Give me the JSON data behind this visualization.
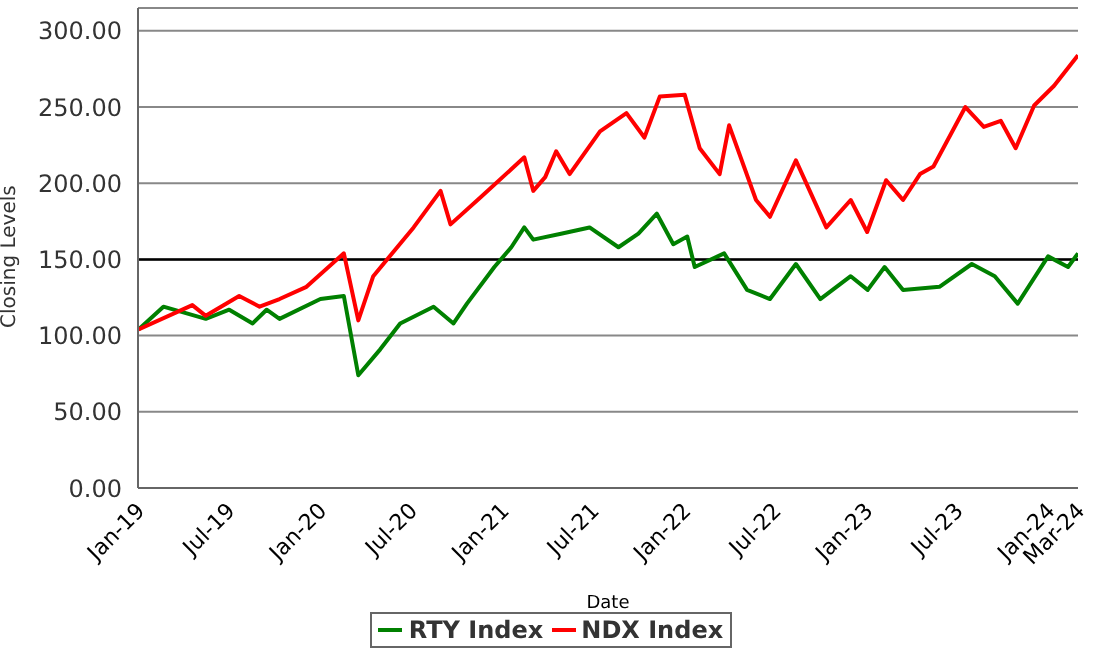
{
  "chart_data": {
    "type": "line",
    "xlabel": "Date",
    "ylabel": "Closing Levels",
    "xlim": [
      "2019-01-01",
      "2024-03-01"
    ],
    "xticks": [
      {
        "value": "2019-01-01",
        "label": "Jan-19"
      },
      {
        "value": "2019-07-01",
        "label": "Jul-19"
      },
      {
        "value": "2020-01-01",
        "label": "Jan-20"
      },
      {
        "value": "2020-07-01",
        "label": "Jul-20"
      },
      {
        "value": "2021-01-01",
        "label": "Jan-21"
      },
      {
        "value": "2021-07-01",
        "label": "Jul-21"
      },
      {
        "value": "2022-01-01",
        "label": "Jan-22"
      },
      {
        "value": "2022-07-01",
        "label": "Jul-22"
      },
      {
        "value": "2023-01-01",
        "label": "Jan-23"
      },
      {
        "value": "2023-07-01",
        "label": "Jul-23"
      },
      {
        "value": "2024-01-01",
        "label": "Jan-24"
      },
      {
        "value": "2024-03-01",
        "label": "Mar-24"
      }
    ],
    "ylim": [
      0,
      315
    ],
    "yticks": [
      {
        "value": 0,
        "label": "0.00"
      },
      {
        "value": 50,
        "label": "50.00"
      },
      {
        "value": 100,
        "label": "100.00"
      },
      {
        "value": 150,
        "label": "150.00"
      },
      {
        "value": 200,
        "label": "200.00"
      },
      {
        "value": 250,
        "label": "250.00"
      },
      {
        "value": 300,
        "label": "300.00"
      }
    ],
    "grid": "y",
    "legend": "bottom",
    "marker": "none",
    "line_style": "solid",
    "ref_lines": [
      {
        "axis": "y",
        "value": 150,
        "color": "#000000"
      }
    ],
    "series": [
      {
        "name": "RTY Index",
        "color": "#008000",
        "x": [
          "2019-01-02",
          "2019-02-21",
          "2019-05-17",
          "2019-07-03",
          "2019-08-19",
          "2019-09-16",
          "2019-10-12",
          "2020-01-02",
          "2020-02-18",
          "2020-03-18",
          "2020-05-01",
          "2020-06-10",
          "2020-08-16",
          "2020-09-25",
          "2020-10-22",
          "2020-12-16",
          "2021-01-19",
          "2021-02-14",
          "2021-03-04",
          "2021-05-01",
          "2021-06-25",
          "2021-08-22",
          "2021-10-01",
          "2021-11-07",
          "2021-12-10",
          "2022-01-07",
          "2022-01-22",
          "2022-03-22",
          "2022-05-07",
          "2022-06-22",
          "2022-08-13",
          "2022-10-01",
          "2022-12-01",
          "2023-01-04",
          "2023-02-07",
          "2023-03-16",
          "2023-05-28",
          "2023-08-01",
          "2023-09-16",
          "2023-11-01",
          "2024-01-01",
          "2024-02-10",
          "2024-03-01"
        ],
        "values": [
          104,
          119,
          111,
          117,
          108,
          117,
          111,
          124,
          126,
          74,
          91,
          108,
          119,
          108,
          121,
          145,
          158,
          171,
          163,
          167,
          171,
          158,
          167,
          180,
          160,
          165,
          145,
          154,
          130,
          124,
          147,
          124,
          139,
          130,
          145,
          130,
          132,
          147,
          139,
          121,
          152,
          145,
          154
        ]
      },
      {
        "name": "NDX Index",
        "color": "#ff0000",
        "x": [
          "2019-01-02",
          "2019-04-20",
          "2019-05-17",
          "2019-07-23",
          "2019-09-02",
          "2019-10-12",
          "2019-12-05",
          "2020-02-18",
          "2020-03-18",
          "2020-04-17",
          "2020-07-07",
          "2020-08-30",
          "2020-09-19",
          "2020-11-19",
          "2021-02-14",
          "2021-03-04",
          "2021-03-28",
          "2021-04-19",
          "2021-05-16",
          "2021-07-16",
          "2021-09-07",
          "2021-10-13",
          "2021-11-13",
          "2022-01-02",
          "2022-02-01",
          "2022-03-13",
          "2022-04-01",
          "2022-05-25",
          "2022-06-22",
          "2022-08-13",
          "2022-10-13",
          "2022-12-01",
          "2023-01-03",
          "2023-02-10",
          "2023-03-16",
          "2023-04-19",
          "2023-05-16",
          "2023-07-19",
          "2023-08-25",
          "2023-09-28",
          "2023-10-28",
          "2023-12-04",
          "2024-01-13",
          "2024-03-01"
        ],
        "values": [
          104,
          120,
          113,
          126,
          119,
          124,
          132,
          154,
          110,
          139,
          171,
          195,
          173,
          191,
          217,
          195,
          204,
          221,
          206,
          234,
          246,
          230,
          257,
          258,
          223,
          206,
          238,
          189,
          178,
          215,
          171,
          189,
          168,
          202,
          189,
          206,
          211,
          250,
          237,
          241,
          223,
          251,
          264,
          284
        ]
      }
    ]
  }
}
